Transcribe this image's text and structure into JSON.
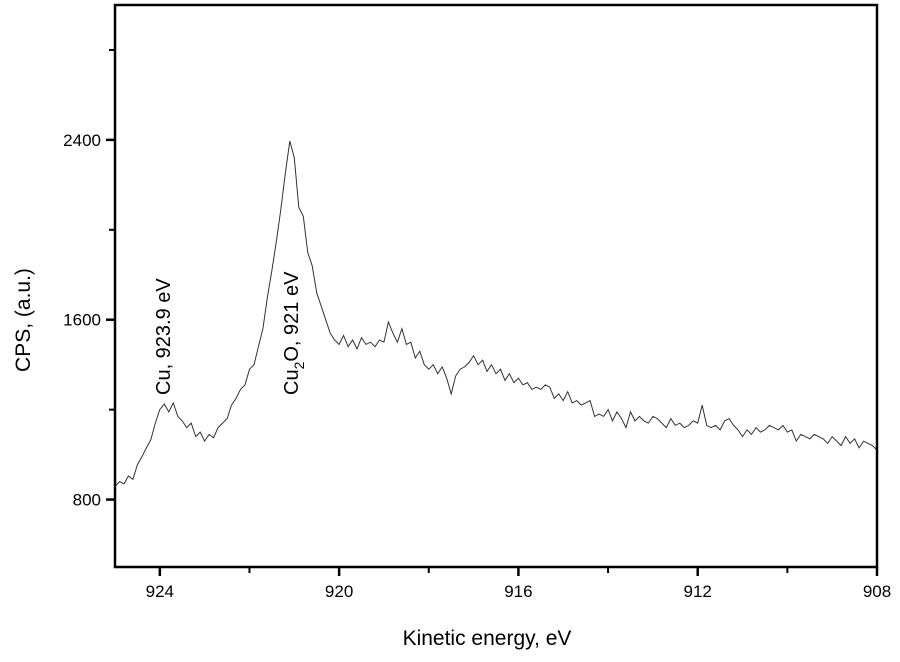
{
  "chart_data": {
    "type": "line",
    "title": "",
    "xlabel": "Kinetic energy, eV",
    "ylabel": "CPS, (a.u.)",
    "xlim": [
      925,
      908
    ],
    "ylim": [
      500,
      3000
    ],
    "x_reversed": true,
    "grid": false,
    "x_ticks": [
      "924",
      "920",
      "916",
      "912",
      "908"
    ],
    "x_tick_values": [
      924,
      920,
      916,
      912,
      908
    ],
    "x_minor_tick_values": [
      922,
      918,
      914,
      910
    ],
    "y_ticks": [
      "800",
      "1600",
      "2400"
    ],
    "y_tick_values": [
      800,
      1600,
      2400
    ],
    "y_minor_tick_values": [
      1200,
      2000,
      2800
    ],
    "line_color": "#333333",
    "annotations": [
      {
        "text": "Cu, 923.9 eV",
        "x": 923.9
      },
      {
        "text_main": "Cu",
        "text_sub": "2",
        "text_rest": "O, 921 eV",
        "x": 921
      }
    ],
    "series": [
      {
        "x": [
          925.0,
          924.9,
          924.8,
          924.7,
          924.6,
          924.5,
          924.4,
          924.3,
          924.2,
          924.1,
          924.0,
          923.9,
          923.8,
          923.7,
          923.6,
          923.5,
          923.4,
          923.3,
          923.2,
          923.1,
          923.0,
          922.9,
          922.8,
          922.7,
          922.6,
          922.5,
          922.4,
          922.3,
          922.2,
          922.1,
          922.0,
          921.9,
          921.8,
          921.7,
          921.6,
          921.5,
          921.4,
          921.3,
          921.2,
          921.1,
          921.0,
          920.9,
          920.8,
          920.7,
          920.6,
          920.5,
          920.4,
          920.3,
          920.2,
          920.1,
          920.0,
          919.9,
          919.8,
          919.7,
          919.6,
          919.5,
          919.4,
          919.3,
          919.2,
          919.1,
          919.0,
          918.9,
          918.8,
          918.7,
          918.6,
          918.5,
          918.4,
          918.3,
          918.2,
          918.1,
          918.0,
          917.9,
          917.8,
          917.7,
          917.6,
          917.5,
          917.4,
          917.3,
          917.2,
          917.1,
          917.0,
          916.9,
          916.8,
          916.7,
          916.6,
          916.5,
          916.4,
          916.3,
          916.2,
          916.1,
          916.0,
          915.9,
          915.8,
          915.7,
          915.6,
          915.5,
          915.4,
          915.3,
          915.2,
          915.1,
          915.0,
          914.9,
          914.8,
          914.7,
          914.6,
          914.5,
          914.4,
          914.3,
          914.2,
          914.1,
          914.0,
          913.9,
          913.8,
          913.7,
          913.6,
          913.5,
          913.4,
          913.3,
          913.2,
          913.1,
          913.0,
          912.9,
          912.8,
          912.7,
          912.6,
          912.5,
          912.4,
          912.3,
          912.2,
          912.1,
          912.0,
          911.9,
          911.8,
          911.7,
          911.6,
          911.5,
          911.4,
          911.3,
          911.2,
          911.1,
          911.0,
          910.9,
          910.8,
          910.7,
          910.6,
          910.5,
          910.4,
          910.3,
          910.2,
          910.1,
          910.0,
          909.9,
          909.8,
          909.7,
          909.6,
          909.5,
          909.4,
          909.3,
          909.2,
          909.1,
          909.0,
          908.9,
          908.8,
          908.7,
          908.6,
          908.5,
          908.4,
          908.3,
          908.2,
          908.1,
          908.0
        ],
        "y": [
          858,
          880,
          870,
          905,
          890,
          955,
          990,
          1030,
          1067,
          1140,
          1200,
          1225,
          1190,
          1230,
          1170,
          1150,
          1120,
          1140,
          1080,
          1100,
          1060,
          1090,
          1075,
          1120,
          1140,
          1160,
          1220,
          1250,
          1290,
          1310,
          1380,
          1400,
          1480,
          1560,
          1700,
          1820,
          1950,
          2090,
          2250,
          2395,
          2320,
          2100,
          2060,
          1900,
          1840,
          1720,
          1660,
          1600,
          1540,
          1510,
          1490,
          1530,
          1480,
          1510,
          1470,
          1520,
          1490,
          1500,
          1480,
          1510,
          1500,
          1590,
          1540,
          1500,
          1560,
          1490,
          1500,
          1430,
          1460,
          1400,
          1380,
          1400,
          1360,
          1390,
          1340,
          1270,
          1350,
          1380,
          1390,
          1410,
          1440,
          1400,
          1420,
          1370,
          1400,
          1360,
          1380,
          1330,
          1360,
          1320,
          1340,
          1310,
          1320,
          1290,
          1300,
          1290,
          1310,
          1300,
          1250,
          1270,
          1240,
          1280,
          1230,
          1240,
          1220,
          1230,
          1240,
          1170,
          1180,
          1170,
          1200,
          1150,
          1190,
          1160,
          1120,
          1190,
          1150,
          1170,
          1150,
          1140,
          1170,
          1160,
          1140,
          1120,
          1160,
          1130,
          1140,
          1120,
          1130,
          1150,
          1140,
          1220,
          1130,
          1120,
          1130,
          1110,
          1150,
          1160,
          1130,
          1110,
          1080,
          1110,
          1090,
          1120,
          1100,
          1110,
          1130,
          1120,
          1110,
          1130,
          1100,
          1110,
          1060,
          1090,
          1080,
          1070,
          1090,
          1080,
          1070,
          1050,
          1080,
          1060,
          1040,
          1080,
          1050,
          1070,
          1030,
          1060,
          1050,
          1040,
          1020
        ]
      }
    ]
  }
}
